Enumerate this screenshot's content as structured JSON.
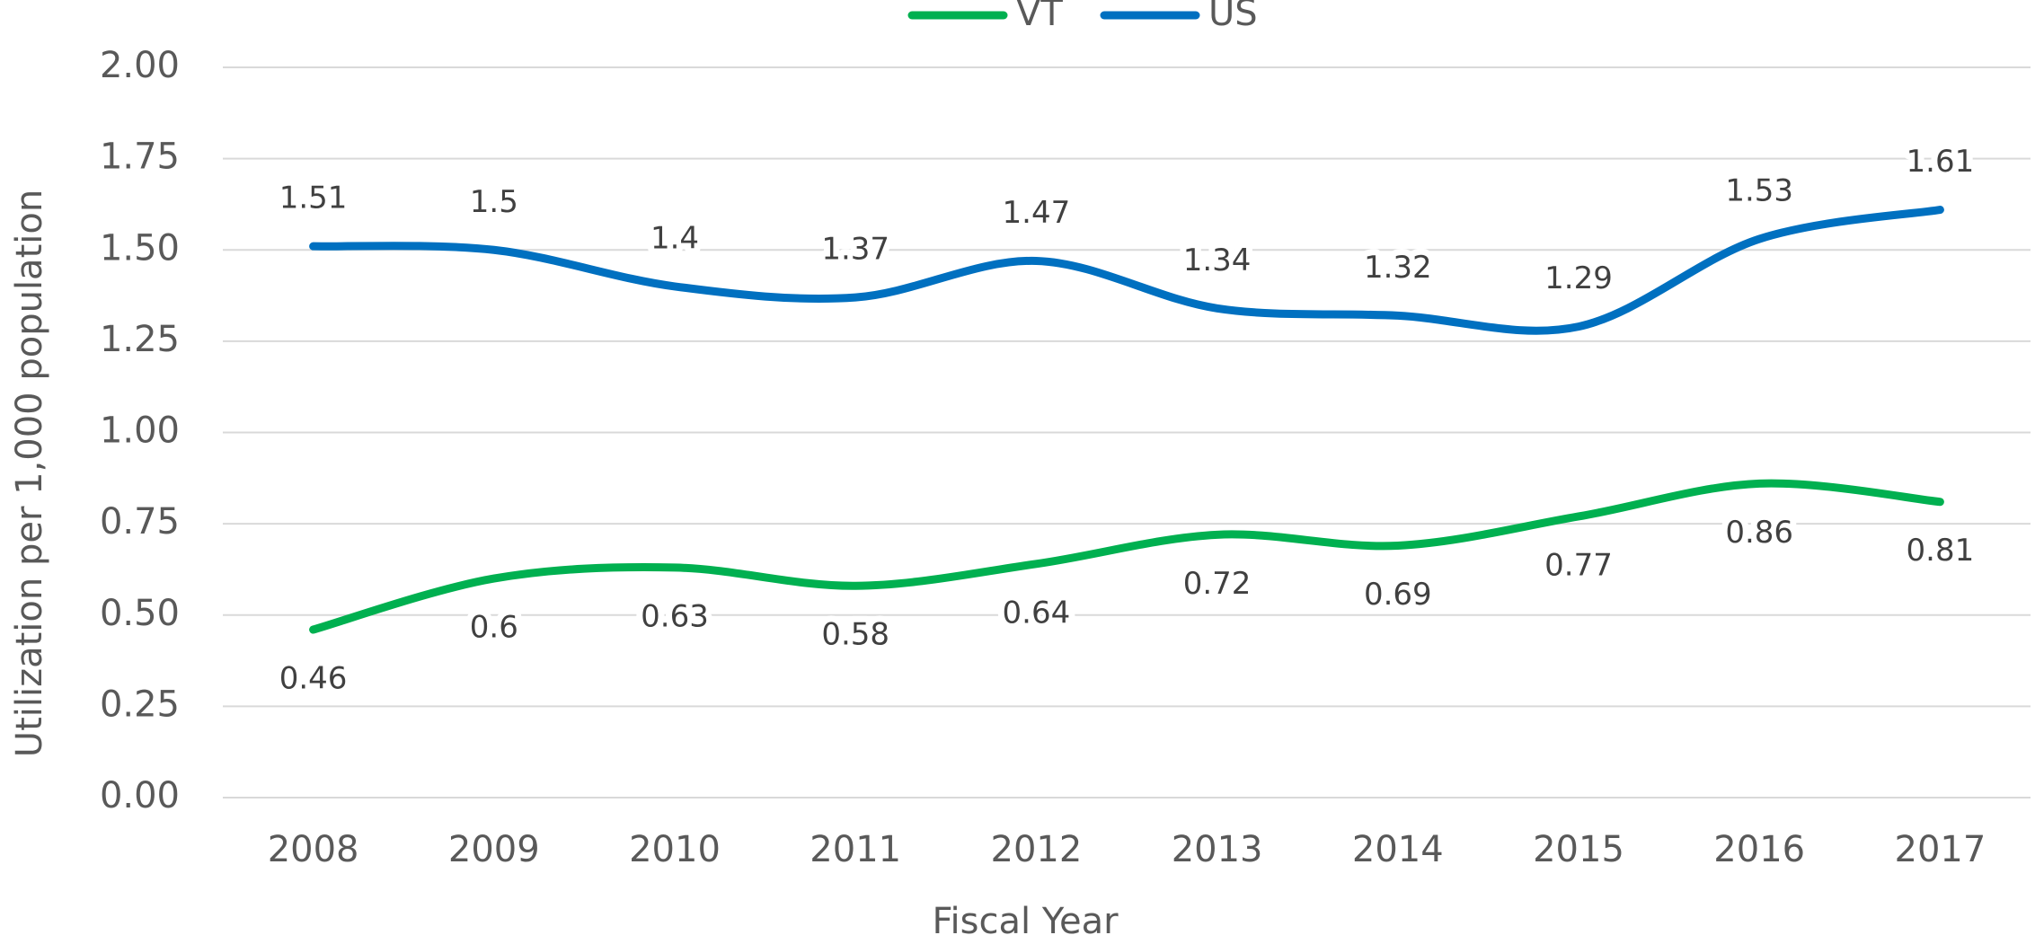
{
  "chart_data": {
    "type": "line",
    "x_label": "Fiscal Year",
    "y_label": "Utilization per 1,000 population",
    "categories": [
      "2008",
      "2009",
      "2010",
      "2011",
      "2012",
      "2013",
      "2014",
      "2015",
      "2016",
      "2017"
    ],
    "series": [
      {
        "name": "VT",
        "color": "#00b050",
        "values": [
          0.46,
          0.6,
          0.63,
          0.58,
          0.64,
          0.72,
          0.69,
          0.77,
          0.86,
          0.81
        ]
      },
      {
        "name": "US",
        "color": "#0070c0",
        "values": [
          1.51,
          1.5,
          1.4,
          1.37,
          1.47,
          1.34,
          1.32,
          1.29,
          1.53,
          1.61
        ]
      }
    ],
    "ylim": [
      0,
      2
    ],
    "yticks": [
      {
        "value": 0,
        "label": "0.00"
      },
      {
        "value": 0.25,
        "label": "0.25"
      },
      {
        "value": 0.5,
        "label": "0.50"
      },
      {
        "value": 0.75,
        "label": "0.75"
      },
      {
        "value": 1,
        "label": "1.00"
      },
      {
        "value": 1.25,
        "label": "1.25"
      },
      {
        "value": 1.5,
        "label": "1.50"
      },
      {
        "value": 1.75,
        "label": "1.75"
      },
      {
        "value": 2,
        "label": "2.00"
      }
    ],
    "grid": true,
    "legend": "top",
    "smooth": true
  }
}
